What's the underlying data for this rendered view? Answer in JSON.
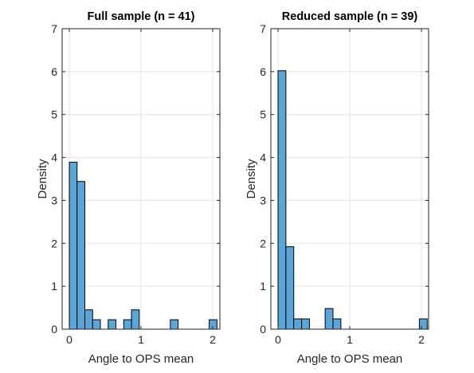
{
  "chart_data": [
    {
      "type": "bar",
      "title": "Full sample (n = 41)",
      "xlabel": "Angle to OPS mean",
      "ylabel": "Density",
      "xlim": [
        -0.1,
        2.1
      ],
      "ylim": [
        0,
        7
      ],
      "xticks": [
        0,
        1,
        2
      ],
      "yticks": [
        0,
        1,
        2,
        3,
        4,
        5,
        6,
        7
      ],
      "grid": true,
      "bar_color": "#5aa6d9",
      "bin_width": 0.1084,
      "bins": [
        {
          "x0": 0.0,
          "value": 3.89
        },
        {
          "x0": 0.108,
          "value": 3.44
        },
        {
          "x0": 0.217,
          "value": 0.45
        },
        {
          "x0": 0.325,
          "value": 0.22
        },
        {
          "x0": 0.542,
          "value": 0.22
        },
        {
          "x0": 0.759,
          "value": 0.22
        },
        {
          "x0": 0.867,
          "value": 0.45
        },
        {
          "x0": 1.409,
          "value": 0.22
        },
        {
          "x0": 1.951,
          "value": 0.22
        }
      ]
    },
    {
      "type": "bar",
      "title": "Reduced sample (n = 39)",
      "xlabel": "Angle to OPS mean",
      "ylabel": "Density",
      "xlim": [
        -0.1,
        2.1
      ],
      "ylim": [
        0,
        7
      ],
      "xticks": [
        0,
        1,
        2
      ],
      "yticks": [
        0,
        1,
        2,
        3,
        4,
        5,
        6,
        7
      ],
      "grid": true,
      "bar_color": "#5aa6d9",
      "bin_width": 0.1095,
      "bins": [
        {
          "x0": 0.0,
          "value": 6.02
        },
        {
          "x0": 0.11,
          "value": 1.92
        },
        {
          "x0": 0.219,
          "value": 0.24
        },
        {
          "x0": 0.329,
          "value": 0.24
        },
        {
          "x0": 0.657,
          "value": 0.48
        },
        {
          "x0": 0.767,
          "value": 0.24
        },
        {
          "x0": 1.971,
          "value": 0.24
        }
      ]
    }
  ]
}
